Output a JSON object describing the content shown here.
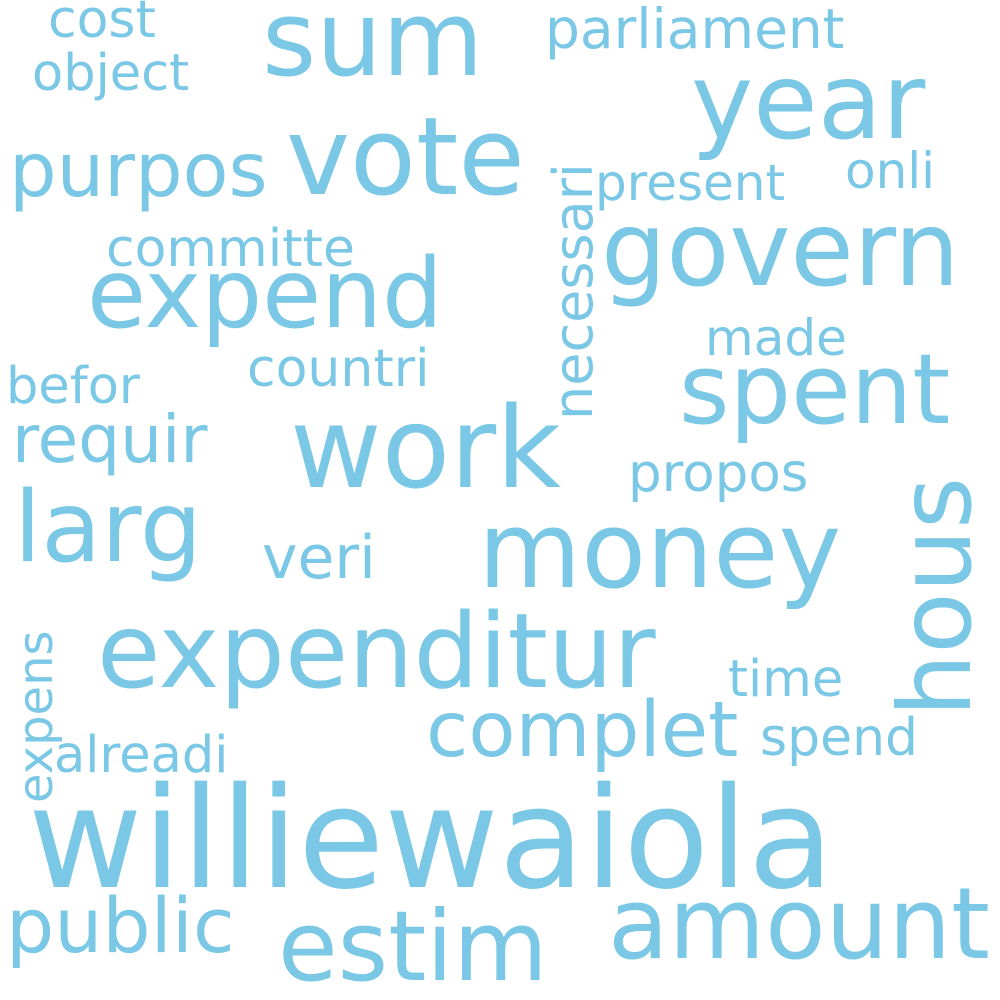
{
  "color": "#7ac8e6",
  "words": {
    "williewaiola": "williewaiola",
    "expenditur": "expenditur",
    "money": "money",
    "work": "work",
    "vote": "vote",
    "govern": "govern",
    "expend": "expend",
    "year": "year",
    "sum": "sum",
    "spent": "spent",
    "hous": "hous",
    "amount": "amount",
    "estim": "estim",
    "larg": "larg",
    "complet": "complet",
    "purpos": "purpos",
    "public": "public",
    "requir": "requir",
    "necessari": "necessari",
    "parliament": "parliament",
    "present": "present",
    "committe": "committe",
    "countri": "countri",
    "propos": "propos",
    "veri": "veri",
    "made": "made",
    "befor": "befor",
    "object": "object",
    "onli": "onli",
    "cost": "cost",
    "time": "time",
    "spend": "spend",
    "alreadi": "alreadi",
    "expens": "expens"
  }
}
